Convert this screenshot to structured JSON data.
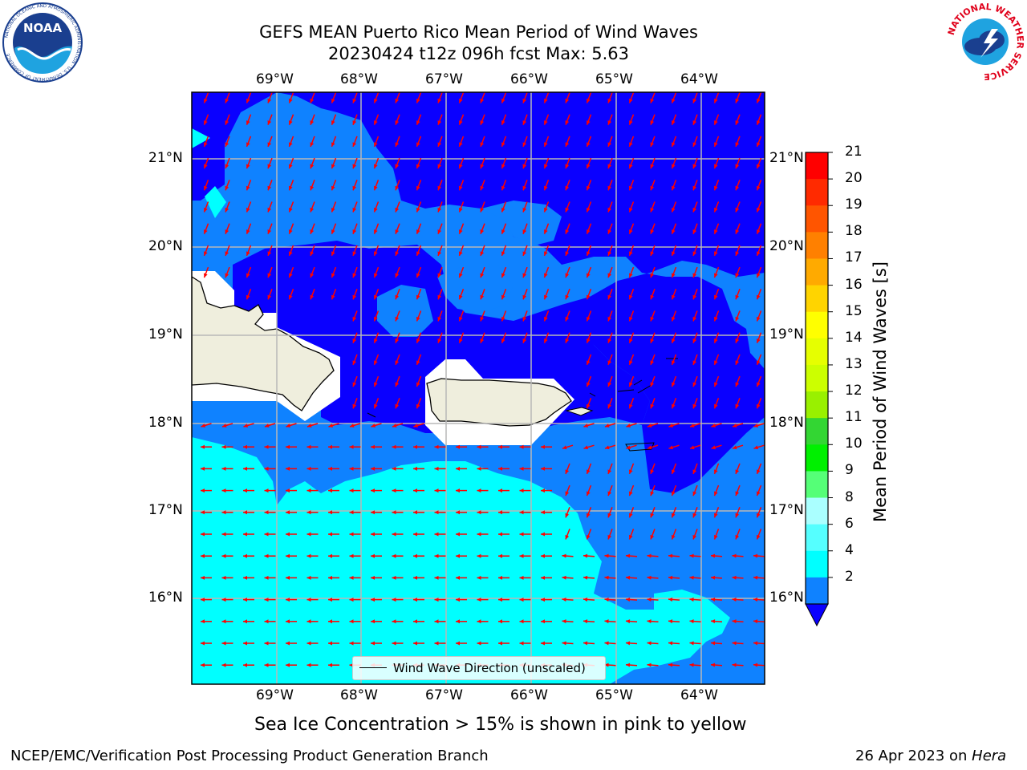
{
  "title": {
    "line1": "GEFS MEAN Puerto Rico Mean Period of Wind Waves",
    "line2": "20230424 t12z 096h fcst   Max: 5.63"
  },
  "logos": {
    "noaa": {
      "text": "NOAA",
      "ring_text": "NATIONAL OCEANIC AND ATMOSPHERIC ADMINISTRATION · U.S. DEPARTMENT OF COMMERCE",
      "color": "#1a3f8f"
    },
    "nws": {
      "ring_text": "NATIONAL WEATHER SERVICE",
      "color": "#e0001a"
    }
  },
  "map": {
    "lon_labels": [
      "69°W",
      "68°W",
      "67°W",
      "66°W",
      "65°W",
      "64°W"
    ],
    "lat_labels": [
      "21°N",
      "20°N",
      "19°N",
      "18°N",
      "17°N",
      "16°N"
    ],
    "land_color": "#efeedd",
    "arrow_color": "#ff0000",
    "fill_colors": {
      "lt2": "#0a00ff",
      "2to4": "#0f82ff",
      "4to6": "#00ffff"
    }
  },
  "legend": {
    "label": "Wind Wave Direction (unscaled)"
  },
  "colorbar": {
    "label": "Mean Period of Wind Waves [s]",
    "ticks": [
      "21",
      "20",
      "19",
      "18",
      "17",
      "16",
      "15",
      "14",
      "13",
      "12",
      "11",
      "10",
      "9",
      "8",
      "6",
      "4",
      "2"
    ],
    "colors": [
      "#ff0000",
      "#ff2a00",
      "#ff5500",
      "#ff8000",
      "#ffaa00",
      "#ffd400",
      "#ffff00",
      "#e6ff00",
      "#ccff00",
      "#99f000",
      "#33d633",
      "#00f000",
      "#55ff77",
      "#aaffff",
      "#55ffff",
      "#00ffff",
      "#0f82ff"
    ],
    "underflow_color": "#0a00ff"
  },
  "subtitle": "Sea Ice Concentration > 15% is shown in pink to yellow",
  "footer": {
    "left": "NCEP/EMC/Verification Post Processing Product Generation Branch",
    "date": "26 Apr 2023 on ",
    "machine": "Hera"
  }
}
